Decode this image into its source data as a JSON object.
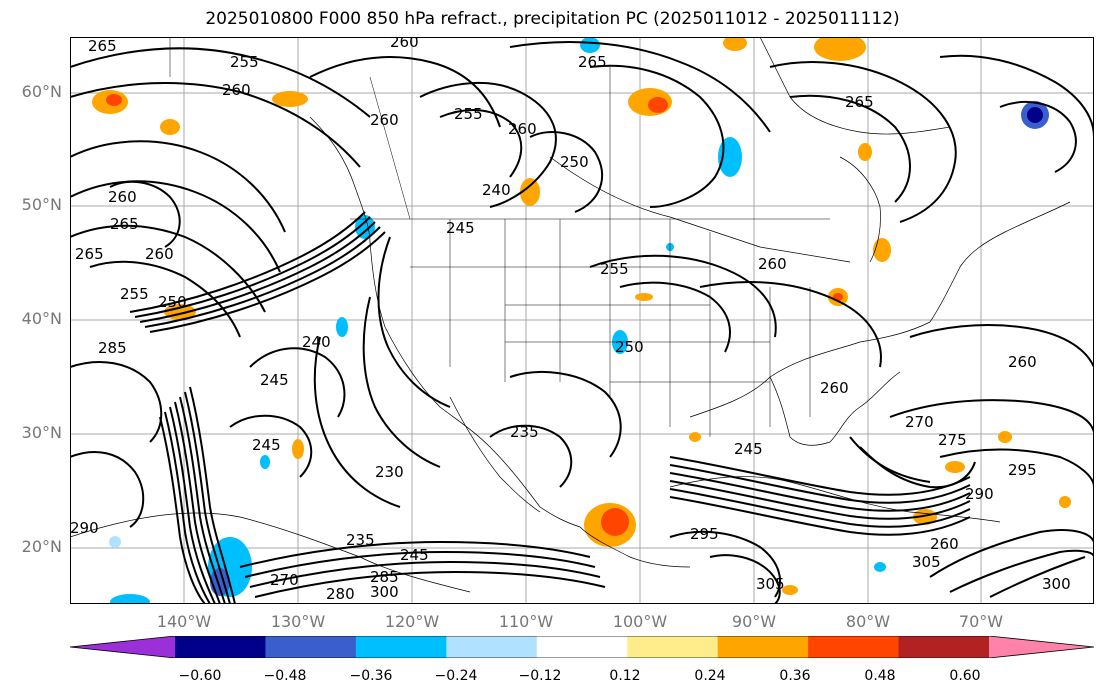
{
  "title": "2025010800 F000 850 hPa refract., precipitation PC (2025011012 - 2025011112)",
  "lat_labels": [
    "60°N",
    "50°N",
    "40°N",
    "30°N",
    "20°N"
  ],
  "lon_labels": [
    "140°W",
    "130°W",
    "120°W",
    "110°W",
    "100°W",
    "90°W",
    "80°W",
    "70°W"
  ],
  "colorbar": {
    "ticks": [
      "−0.60",
      "−0.48",
      "−0.36",
      "−0.24",
      "−0.12",
      "0.12",
      "0.24",
      "0.36",
      "0.48",
      "0.60"
    ],
    "colors": [
      "#9b30d9",
      "#00008b",
      "#3a5fcd",
      "#00bfff",
      "#b0e2ff",
      "#ffffff",
      "#ffec8b",
      "#ffa500",
      "#ff4500",
      "#b22222",
      "#ff82ab"
    ]
  },
  "contour_labels": [
    "265",
    "260",
    "255",
    "260",
    "265",
    "260",
    "255",
    "260",
    "250",
    "240",
    "245",
    "255",
    "265",
    "260",
    "265",
    "260",
    "265",
    "260",
    "255",
    "250",
    "285",
    "245",
    "240",
    "245",
    "235",
    "230",
    "235",
    "245",
    "245",
    "250",
    "260",
    "260",
    "270",
    "275",
    "295",
    "290",
    "295",
    "300",
    "305",
    "305",
    "280",
    "300",
    "290",
    "285",
    "270",
    "260"
  ]
}
